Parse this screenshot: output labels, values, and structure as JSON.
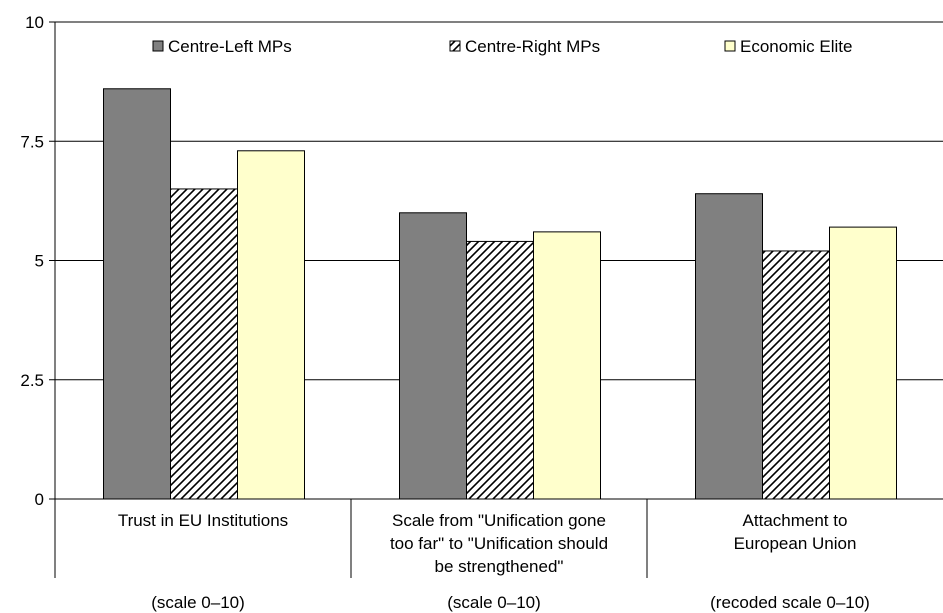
{
  "chart_data": {
    "type": "bar",
    "categories": [
      "Trust in EU Institutions",
      "Scale from \"Unification gone too far\" to \"Unification should be strengthened\"",
      "Attachment to European Union"
    ],
    "category_label_lines": [
      [
        "Trust in EU Institutions"
      ],
      [
        "Scale from \"Unification gone",
        "too far\" to \"Unification should",
        "be strengthened\""
      ],
      [
        "Attachment to",
        "European Union"
      ]
    ],
    "category_notes": [
      "(scale 0–10)",
      "(scale 0–10)",
      "(recoded scale 0–10)"
    ],
    "series": [
      {
        "name": "Centre-Left MPs",
        "values": [
          8.6,
          6.0,
          6.4
        ],
        "color": "#808080",
        "pattern": "solid"
      },
      {
        "name": "Centre-Right MPs",
        "values": [
          6.5,
          5.4,
          5.2
        ],
        "color": "#ffffff",
        "pattern": "diagonal-hatch"
      },
      {
        "name": "Economic Elite",
        "values": [
          7.3,
          5.6,
          5.7
        ],
        "color": "#ffffcc",
        "pattern": "solid"
      }
    ],
    "ylim": [
      0,
      10
    ],
    "yticks": [
      0,
      2.5,
      5,
      7.5,
      10
    ],
    "ytick_labels": [
      "0",
      "2.5",
      "5",
      "7.5",
      "10"
    ],
    "grid": true,
    "legend_position": "top-inside",
    "title": "",
    "xlabel": "",
    "ylabel": ""
  }
}
